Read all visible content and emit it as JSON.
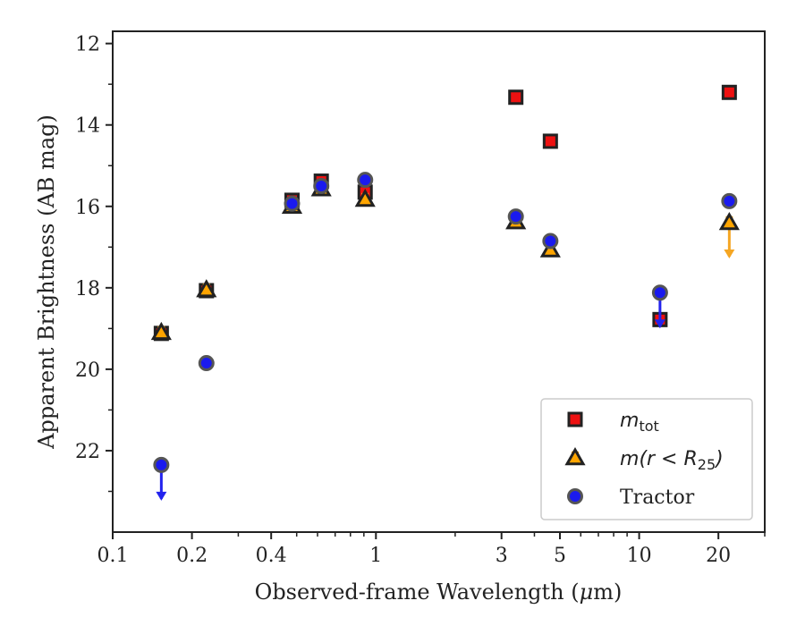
{
  "chart_data": {
    "type": "scatter",
    "xlabel_prefix": "Observed-frame Wavelength (",
    "xlabel_mu": "μ",
    "xlabel_suffix": "m)",
    "ylabel": "Apparent Brightness (AB mag)",
    "xscale": "log",
    "xlim": [
      0.1,
      30
    ],
    "ylim": [
      24.0,
      11.7
    ],
    "y_inverted": true,
    "x_ticks": [
      {
        "value": 0.1,
        "label": "0.1"
      },
      {
        "value": 0.2,
        "label": "0.2"
      },
      {
        "value": 0.4,
        "label": "0.4"
      },
      {
        "value": 1,
        "label": "1"
      },
      {
        "value": 3,
        "label": "3"
      },
      {
        "value": 5,
        "label": "5"
      },
      {
        "value": 10,
        "label": "10"
      },
      {
        "value": 20,
        "label": "20"
      }
    ],
    "x_minor_ticks": [
      0.3,
      0.5,
      0.6,
      0.7,
      0.8,
      0.9,
      2,
      4,
      6,
      7,
      8,
      9,
      30
    ],
    "y_ticks": [
      {
        "value": 12,
        "label": "12"
      },
      {
        "value": 14,
        "label": "14"
      },
      {
        "value": 16,
        "label": "16"
      },
      {
        "value": 18,
        "label": "18"
      },
      {
        "value": 20,
        "label": "20"
      },
      {
        "value": 22,
        "label": "22"
      }
    ],
    "y_minor_ticks": [
      13,
      15,
      17,
      19,
      21,
      23
    ],
    "grid": false,
    "legend_position": "lower-right",
    "series": [
      {
        "key": "mtot",
        "marker": "square",
        "face_color": "#ee1111",
        "edge_color": "#222222",
        "error_color": "#dd1111",
        "points": [
          {
            "x": 0.153,
            "y": 19.12
          },
          {
            "x": 0.227,
            "y": 18.07
          },
          {
            "x": 0.48,
            "y": 15.85
          },
          {
            "x": 0.62,
            "y": 15.38
          },
          {
            "x": 0.91,
            "y": 15.65
          },
          {
            "x": 3.4,
            "y": 13.32
          },
          {
            "x": 4.6,
            "y": 14.4
          },
          {
            "x": 12.0,
            "y": 18.78
          },
          {
            "x": 22.0,
            "y": 13.2
          }
        ]
      },
      {
        "key": "mr25",
        "marker": "triangle",
        "face_color": "#ffa500",
        "edge_color": "#222222",
        "error_color": "#f5a623",
        "points": [
          {
            "x": 0.153,
            "y": 19.1
          },
          {
            "x": 0.227,
            "y": 18.05
          },
          {
            "x": 0.48,
            "y": 16.0
          },
          {
            "x": 0.62,
            "y": 15.57
          },
          {
            "x": 0.91,
            "y": 15.83
          },
          {
            "x": 3.4,
            "y": 16.38
          },
          {
            "x": 4.6,
            "y": 17.07
          },
          {
            "x": 22.0,
            "y": 16.4,
            "upper_limit": true
          }
        ]
      },
      {
        "key": "tractor",
        "marker": "circle",
        "face_color": "#1a1aee",
        "edge_color": "#555555",
        "error_color": "#2222ee",
        "points": [
          {
            "x": 0.153,
            "y": 22.35,
            "upper_limit": true
          },
          {
            "x": 0.227,
            "y": 19.85
          },
          {
            "x": 0.48,
            "y": 15.93
          },
          {
            "x": 0.62,
            "y": 15.5
          },
          {
            "x": 0.91,
            "y": 15.35
          },
          {
            "x": 3.4,
            "y": 16.25
          },
          {
            "x": 4.6,
            "y": 16.85
          },
          {
            "x": 12.0,
            "y": 18.12,
            "upper_limit": true
          },
          {
            "x": 22.0,
            "y": 15.87
          }
        ]
      }
    ],
    "legend": [
      {
        "key": "mtot",
        "base": "m",
        "sub": "tot",
        "suffix": ""
      },
      {
        "key": "mr25",
        "base": "m",
        "rest": "(r < R",
        "sub": "25",
        "suffix": ")"
      },
      {
        "key": "tractor",
        "text": "Tractor"
      }
    ]
  }
}
